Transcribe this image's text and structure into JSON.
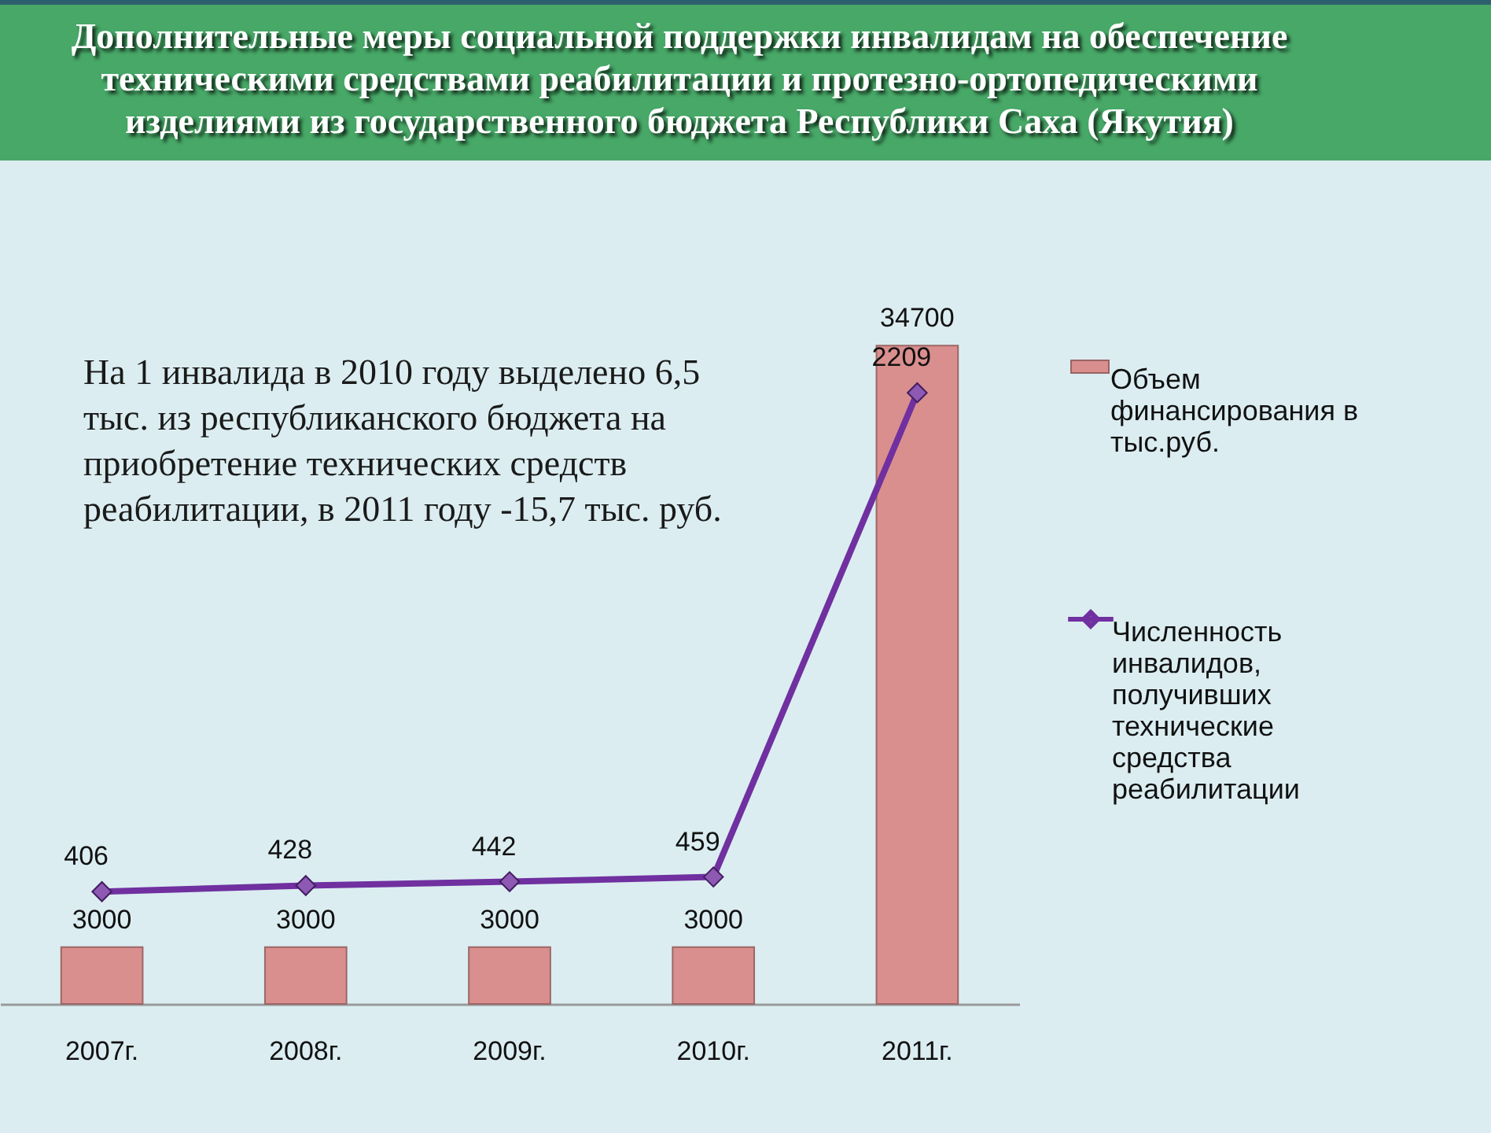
{
  "chart_data": {
    "type": "bar",
    "title": "Дополнительные меры социальной поддержки инвалидам на обеспечение техническими средствами реабилитации и протезно-ортопедическими изделиями из государственного бюджета Республики Саха (Якутия)",
    "categories": [
      "2007г.",
      "2008г.",
      "2009г.",
      "2010г.",
      "2011г."
    ],
    "series": [
      {
        "name": "Объем финансирования в тыс.руб.",
        "color": "#d98f8e",
        "values": [
          3000,
          3000,
          3000,
          3000,
          34700
        ]
      },
      {
        "name": "Численность инвалидов, получивших технические средства реабилитации",
        "type": "line",
        "axis": "y2",
        "color": "#7030a0",
        "values": [
          406,
          428,
          442,
          459,
          2209
        ]
      }
    ],
    "data_labels": true,
    "marker": "diamond",
    "legend": "right",
    "grid": false,
    "tick_labels": "x",
    "annotations": [
      "На 1 инвалида в 2010 году выделено 6,5 тыс. из республиканского бюджета на приобретение технических средств реабилитации, в 2011 году -15,7 тыс. руб."
    ]
  }
}
